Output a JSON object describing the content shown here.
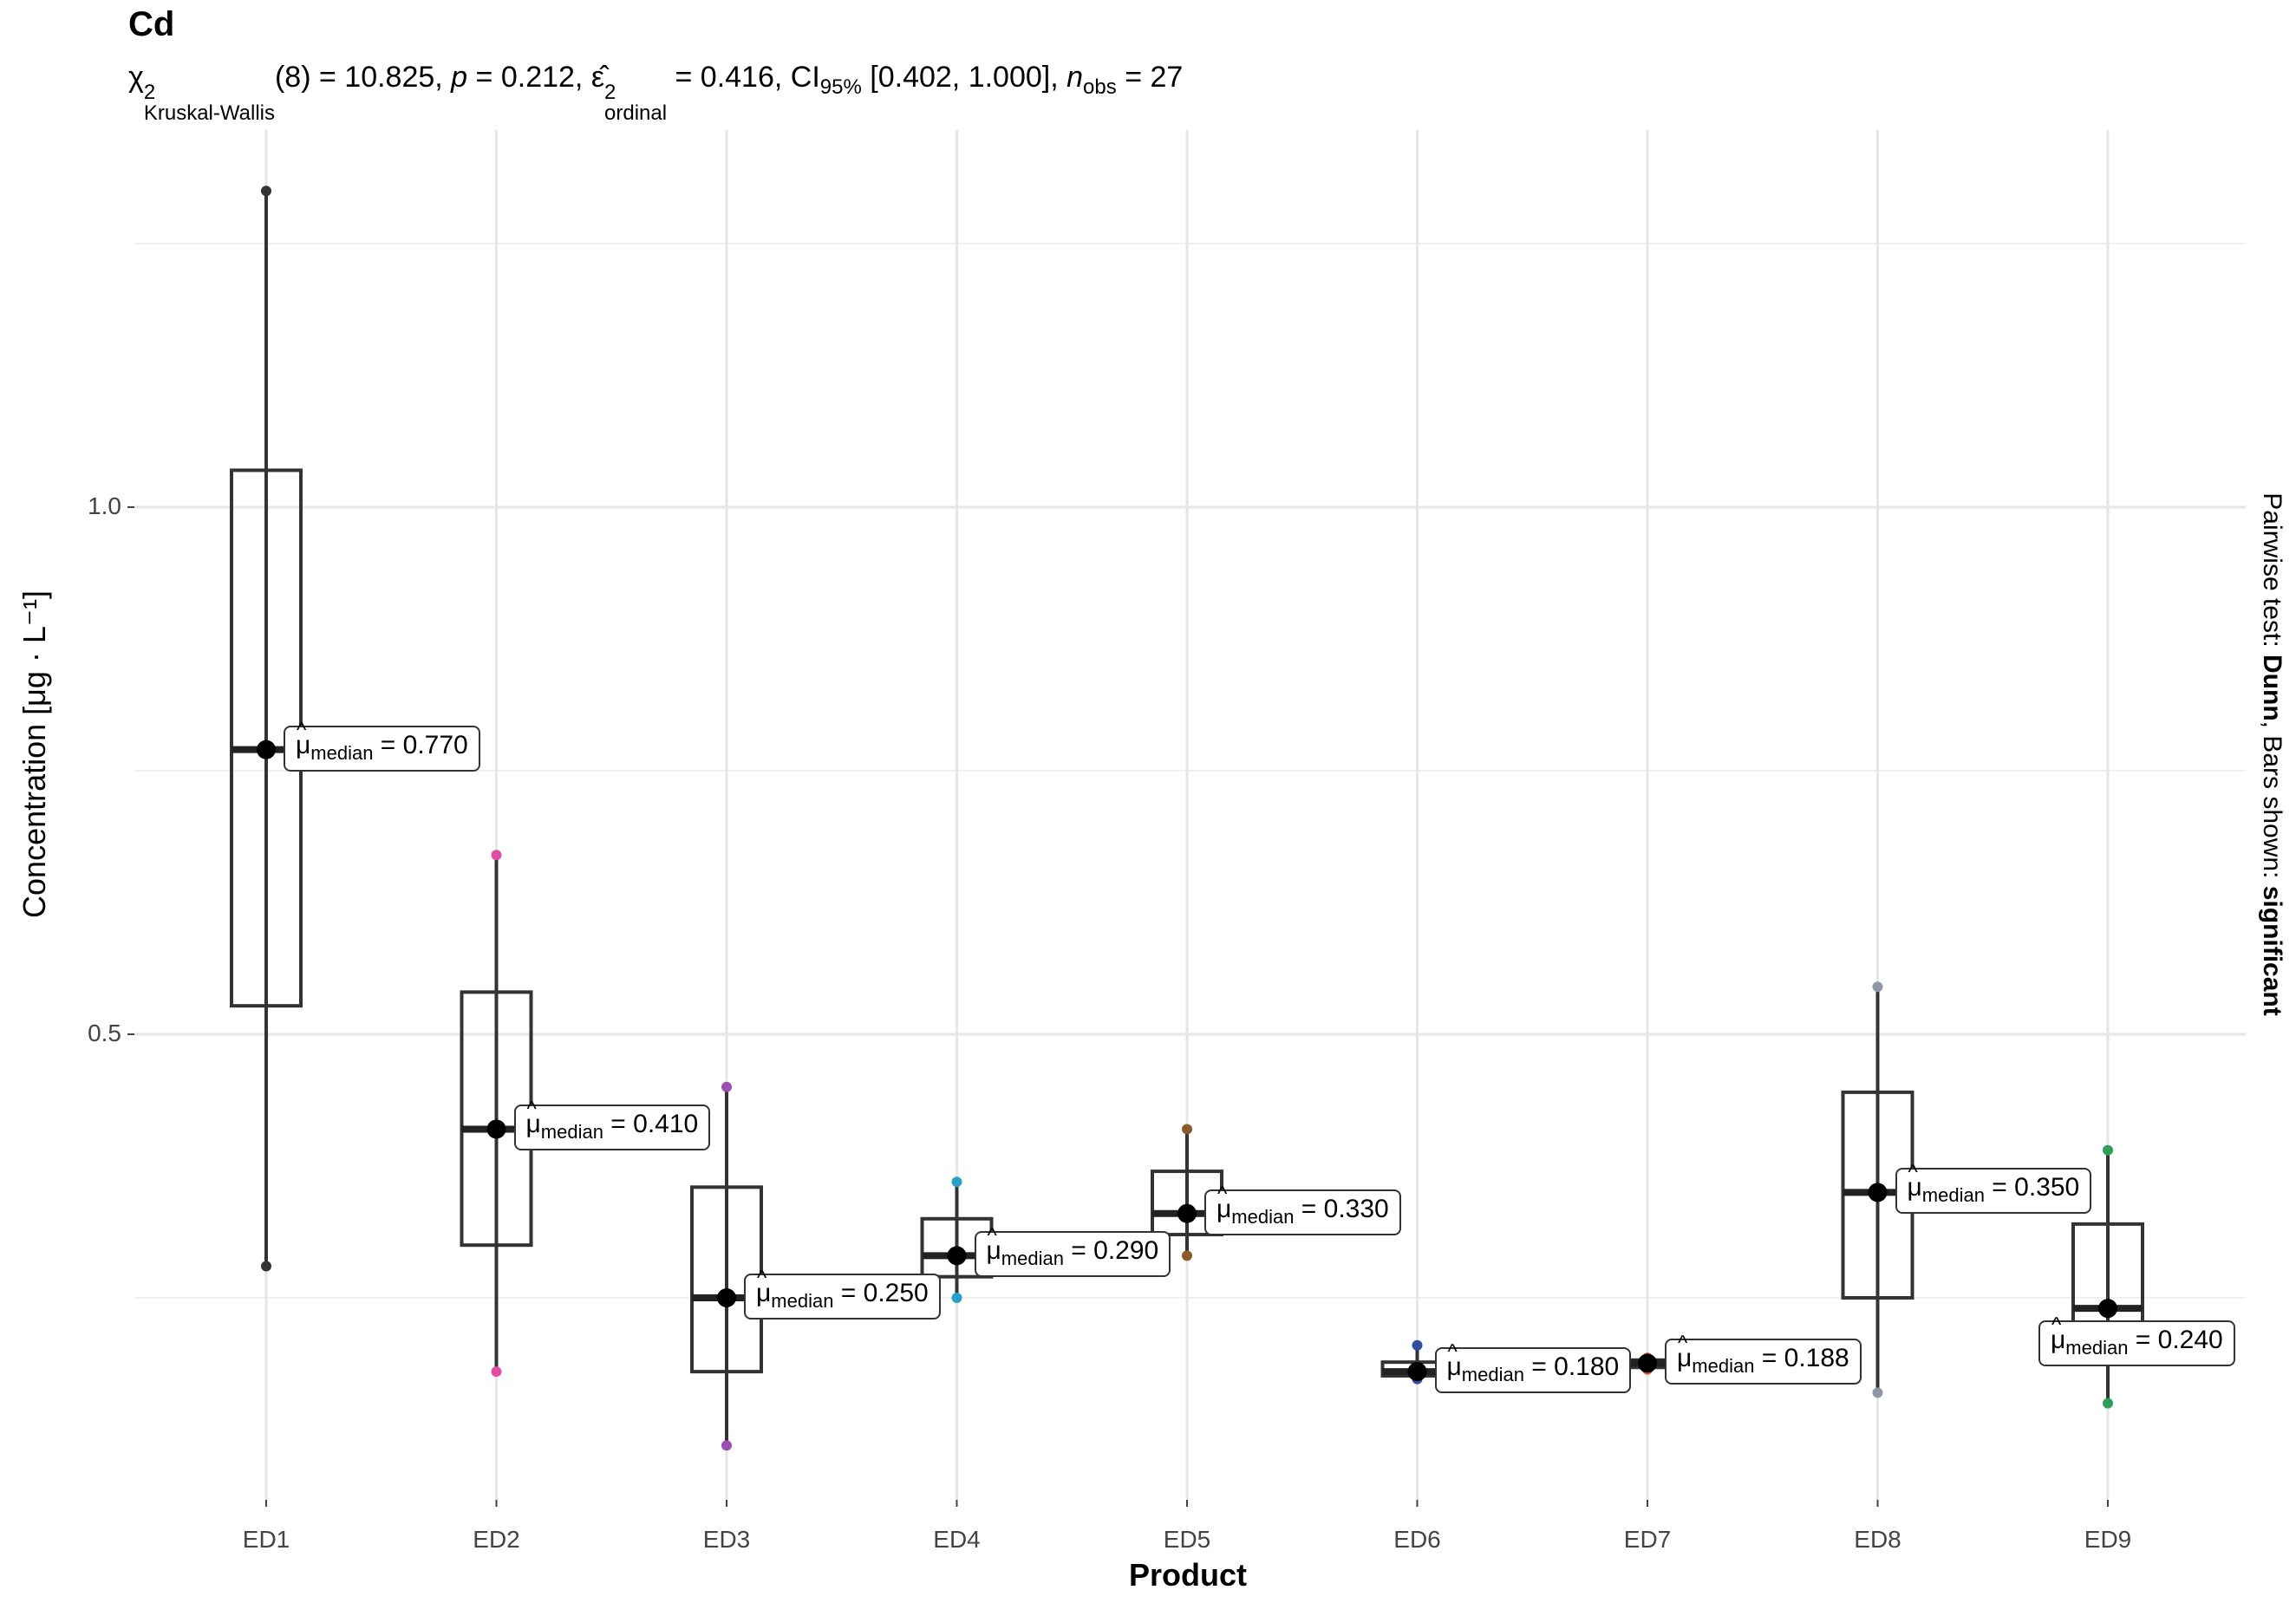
{
  "chart_data": {
    "type": "box",
    "title": "Cd",
    "subtitle": {
      "chi_symbol": "χ",
      "chi_sup": "2",
      "chi_sub": "Kruskal-Wallis",
      "df_part": "(8) = 10.825, ",
      "p_symbol": "p",
      "p_part": " = 0.212, ",
      "eps_symbol": "ε̂",
      "eps_sup": "2",
      "eps_sub": "ordinal",
      "eps_part": " = 0.416, CI",
      "ci_sub": "95%",
      "ci_part": " [0.402, 1.000], ",
      "n_symbol": "n",
      "n_sub": "obs",
      "n_part": " = 27"
    },
    "xlabel": "Product",
    "ylabel": "Concentration [μg · L⁻¹]",
    "caption": {
      "prefix": "Pairwise test: ",
      "test": "Dunn",
      "middle": ", Bars shown: ",
      "shown": "significant"
    },
    "ylim": [
      0.06,
      1.36
    ],
    "yticks": [
      0.5,
      1.0
    ],
    "ytick_labels": [
      "0.5",
      "1.0"
    ],
    "minor_gridlines": [
      0.25,
      0.75,
      1.25
    ],
    "grid": true,
    "label_prefix": "μ",
    "label_sub": "median",
    "groups": [
      {
        "name": "ED1",
        "min": 0.28,
        "q1": 0.527,
        "median": 0.77,
        "q3": 1.035,
        "max": 1.3,
        "points": [
          0.28,
          0.77,
          1.3
        ],
        "label": " = 0.770",
        "color": "#333333"
      },
      {
        "name": "ED2",
        "min": 0.18,
        "q1": 0.3,
        "median": 0.41,
        "q3": 0.54,
        "max": 0.67,
        "points": [
          0.18,
          0.41,
          0.67
        ],
        "label": " = 0.410",
        "color": "#e04fa5"
      },
      {
        "name": "ED3",
        "min": 0.11,
        "q1": 0.18,
        "median": 0.25,
        "q3": 0.355,
        "max": 0.45,
        "points": [
          0.11,
          0.25,
          0.45
        ],
        "label": " = 0.250",
        "color": "#9b4fb0"
      },
      {
        "name": "ED4",
        "min": 0.25,
        "q1": 0.27,
        "median": 0.29,
        "q3": 0.325,
        "max": 0.36,
        "points": [
          0.25,
          0.29,
          0.36
        ],
        "label": " = 0.290",
        "color": "#2aa0c8"
      },
      {
        "name": "ED5",
        "min": 0.29,
        "q1": 0.31,
        "median": 0.33,
        "q3": 0.37,
        "max": 0.41,
        "points": [
          0.29,
          0.33,
          0.41
        ],
        "label": " = 0.330",
        "color": "#8a5a2b"
      },
      {
        "name": "ED6",
        "min": 0.173,
        "q1": 0.176,
        "median": 0.18,
        "q3": 0.189,
        "max": 0.205,
        "points": [
          0.173,
          0.18,
          0.205
        ],
        "label": " = 0.180",
        "color": "#2e4fa3"
      },
      {
        "name": "ED7",
        "min": 0.182,
        "q1": 0.184,
        "median": 0.188,
        "q3": 0.191,
        "max": 0.193,
        "points": [
          0.182,
          0.188,
          0.193
        ],
        "label": " = 0.188",
        "color": "#e0552b"
      },
      {
        "name": "ED8",
        "min": 0.16,
        "q1": 0.25,
        "median": 0.35,
        "q3": 0.445,
        "max": 0.545,
        "points": [
          0.16,
          0.35,
          0.545
        ],
        "label": " = 0.350",
        "color": "#8e97a3"
      },
      {
        "name": "ED9",
        "min": 0.15,
        "q1": 0.2,
        "median": 0.24,
        "q3": 0.32,
        "max": 0.39,
        "points": [
          0.15,
          0.24,
          0.39
        ],
        "label": " = 0.240",
        "color": "#2e9e5b"
      }
    ]
  }
}
